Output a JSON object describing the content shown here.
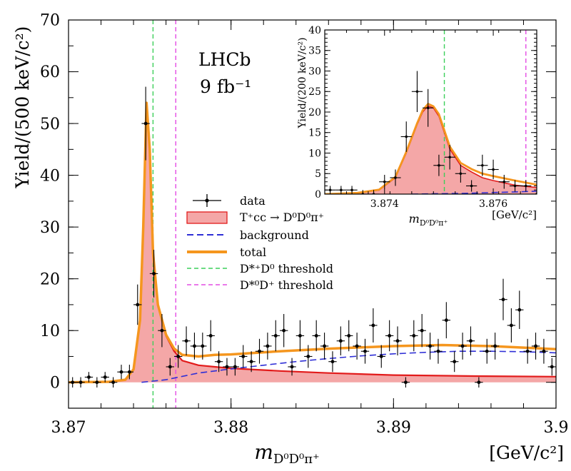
{
  "chart_data": [
    {
      "type": "scatter",
      "role": "main",
      "xlabel": "m",
      "xlabel_sub": "D⁰D⁰π⁺",
      "xunit": "[GeV/c²]",
      "ylabel": "Yield/(500 keV/c²)",
      "xlim": [
        3.87,
        3.9
      ],
      "ylim": [
        -5,
        70
      ],
      "xticks": [
        3.87,
        3.88,
        3.89,
        3.9
      ],
      "xtick_labels": [
        "3.87",
        "3.88",
        "3.89",
        "3.9"
      ],
      "yticks": [
        0,
        10,
        20,
        30,
        40,
        50,
        60,
        70
      ],
      "ytick_labels": [
        "0",
        "10",
        "20",
        "30",
        "40",
        "50",
        "60",
        "70"
      ],
      "annotations": [
        "LHCb",
        "9 fb⁻¹"
      ],
      "thresholds": [
        {
          "name": "D*+D0",
          "x": 3.8752,
          "color": "#3ccf5a"
        },
        {
          "name": "D*0D+",
          "x": 3.8766,
          "color": "#e44be4"
        }
      ],
      "legend": {
        "placement": "center",
        "entries": [
          {
            "key": "data",
            "label": "data"
          },
          {
            "key": "signal",
            "label": "T⁺cc → D⁰D⁰π⁺"
          },
          {
            "key": "background",
            "label": "background"
          },
          {
            "key": "total",
            "label": "total"
          },
          {
            "key": "thr1",
            "label": "D*⁺D⁰ threshold"
          },
          {
            "key": "thr2",
            "label": "D*⁰D⁺ threshold"
          }
        ]
      },
      "data": {
        "x": [
          3.87025,
          3.87075,
          3.87125,
          3.87175,
          3.87225,
          3.87275,
          3.87325,
          3.87375,
          3.87425,
          3.87475,
          3.87525,
          3.87575,
          3.87625,
          3.87675,
          3.87725,
          3.87775,
          3.87825,
          3.87875,
          3.87925,
          3.87975,
          3.88025,
          3.88075,
          3.88125,
          3.88175,
          3.88225,
          3.88275,
          3.88325,
          3.88375,
          3.88425,
          3.88475,
          3.88525,
          3.88575,
          3.88625,
          3.88675,
          3.88725,
          3.88775,
          3.88825,
          3.88875,
          3.88925,
          3.88975,
          3.89025,
          3.89075,
          3.89125,
          3.89175,
          3.89225,
          3.89275,
          3.89325,
          3.89375,
          3.89425,
          3.89475,
          3.89525,
          3.89575,
          3.89625,
          3.89675,
          3.89725,
          3.89775,
          3.89825,
          3.89875,
          3.89925,
          3.89975
        ],
        "y": [
          0,
          0,
          1,
          0,
          1,
          0,
          2,
          2,
          15,
          50,
          21,
          10,
          3,
          5,
          8,
          7,
          7,
          9,
          4,
          3,
          3,
          5,
          4,
          6,
          7,
          9,
          10,
          3,
          9,
          5,
          9,
          7,
          4,
          8,
          9,
          7,
          6,
          11,
          5,
          9,
          8,
          0,
          9,
          10,
          7,
          6,
          12,
          4,
          7,
          8,
          0,
          6,
          7,
          16,
          11,
          14,
          6,
          7,
          6,
          3
        ],
        "yerr": [
          1,
          1,
          1,
          1,
          1,
          1,
          1.4,
          1.4,
          3.9,
          7.1,
          4.6,
          3.2,
          1.7,
          2.2,
          2.8,
          2.6,
          2.6,
          3,
          2,
          1.7,
          1.7,
          2.2,
          2,
          2.4,
          2.6,
          3,
          3.2,
          1.7,
          3,
          2.2,
          3,
          2.6,
          2,
          2.8,
          3,
          2.6,
          2.4,
          3.3,
          2.2,
          3,
          2.8,
          1,
          3,
          3.2,
          2.6,
          2.4,
          3.5,
          2,
          2.6,
          2.8,
          1,
          2.4,
          2.6,
          4,
          3.3,
          3.7,
          2.4,
          2.6,
          2.4,
          1.7
        ]
      },
      "curves": {
        "background": {
          "x": [
            3.8745,
            3.876,
            3.878,
            3.88,
            3.882,
            3.884,
            3.886,
            3.888,
            3.89,
            3.892,
            3.894,
            3.896,
            3.898,
            3.9
          ],
          "y": [
            0,
            0.5,
            1.8,
            2.6,
            3.3,
            4.0,
            4.6,
            5.1,
            5.5,
            5.8,
            6.0,
            6.0,
            5.9,
            5.7
          ]
        },
        "signal": {
          "x": [
            3.87,
            3.8725,
            3.8735,
            3.874,
            3.8744,
            3.8746,
            3.8748,
            3.875,
            3.8752,
            3.8755,
            3.876,
            3.8765,
            3.877,
            3.878,
            3.879,
            3.88,
            3.883,
            3.886,
            3.89,
            3.895,
            3.9
          ],
          "y": [
            0,
            0.1,
            0.5,
            2.5,
            12,
            30,
            54,
            45,
            25,
            15,
            9,
            6,
            4.2,
            3.3,
            3.0,
            2.7,
            2.2,
            1.8,
            1.4,
            1.2,
            1.1
          ]
        },
        "total": {
          "x": [
            3.87,
            3.8725,
            3.8735,
            3.874,
            3.8744,
            3.8746,
            3.8748,
            3.875,
            3.8752,
            3.8755,
            3.876,
            3.8765,
            3.877,
            3.878,
            3.879,
            3.88,
            3.883,
            3.886,
            3.89,
            3.893,
            3.896,
            3.9
          ],
          "y": [
            0,
            0.1,
            0.5,
            2.5,
            12,
            30,
            54,
            45,
            25,
            15,
            9.2,
            6.5,
            5.3,
            5.0,
            5.3,
            5.4,
            6.0,
            6.5,
            7.0,
            7.2,
            7.0,
            6.4
          ]
        }
      }
    },
    {
      "type": "scatter",
      "role": "inset",
      "xlabel": "m",
      "xlabel_sub": "D⁰D⁰π⁺",
      "xunit": "[GeV/c²]",
      "ylabel": "Yield/(200 keV/c²)",
      "xlim": [
        3.8729,
        3.8768
      ],
      "ylim": [
        0,
        40
      ],
      "xticks": [
        3.874,
        3.876
      ],
      "xtick_labels": [
        "3.874",
        "3.876"
      ],
      "yticks": [
        0,
        5,
        10,
        15,
        20,
        25,
        30,
        35,
        40
      ],
      "ytick_labels": [
        "0",
        "5",
        "10",
        "15",
        "20",
        "25",
        "30",
        "35",
        "40"
      ],
      "thresholds": [
        {
          "name": "D*+D0",
          "x": 3.8751,
          "color": "#3ccf5a"
        },
        {
          "name": "D*0D+",
          "x": 3.8766,
          "color": "#e44be4"
        }
      ],
      "data": {
        "x": [
          3.873,
          3.8732,
          3.8734,
          3.8736,
          3.8738,
          3.874,
          3.8742,
          3.8744,
          3.8746,
          3.8748,
          3.875,
          3.8752,
          3.8754,
          3.8756,
          3.8758,
          3.876,
          3.8762,
          3.8764,
          3.8766,
          3.8768
        ],
        "y": [
          1,
          1,
          1,
          0,
          0,
          3,
          4,
          14,
          25,
          21,
          7,
          9,
          5,
          2,
          7,
          6,
          3,
          2,
          2,
          0
        ],
        "yerr": [
          1,
          1,
          1,
          1,
          1,
          1.7,
          2,
          3.7,
          5,
          4.6,
          2.6,
          3,
          2.2,
          1.4,
          2.6,
          2.4,
          1.7,
          1.4,
          1.4,
          1
        ]
      },
      "curves": {
        "signal": {
          "x": [
            3.8729,
            3.8735,
            3.8739,
            3.8742,
            3.8744,
            3.8746,
            3.8747,
            3.8748,
            3.8749,
            3.875,
            3.8752,
            3.8754,
            3.8756,
            3.8758,
            3.876,
            3.8764,
            3.8768
          ],
          "y": [
            0,
            0.3,
            1,
            4,
            10,
            17,
            20,
            21.5,
            21,
            19,
            11,
            7,
            5.4,
            4,
            3.3,
            2.2,
            1.6
          ]
        },
        "total": {
          "x": [
            3.8729,
            3.8735,
            3.8739,
            3.8742,
            3.8744,
            3.8746,
            3.8747,
            3.8748,
            3.8749,
            3.875,
            3.8752,
            3.8754,
            3.8756,
            3.8758,
            3.876,
            3.8764,
            3.8768
          ],
          "y": [
            0,
            0.3,
            1.1,
            4.2,
            10.3,
            17.3,
            20.4,
            22,
            21.4,
            19.5,
            11.6,
            7.6,
            6.1,
            5,
            4.4,
            3.3,
            2.3
          ]
        },
        "background": {
          "x": [
            3.8745,
            3.8755,
            3.8768
          ],
          "y": [
            0,
            0.2,
            0.7
          ]
        }
      }
    }
  ],
  "colors": {
    "signal_fill": "#f4a7a7",
    "signal_line": "#e21b1b",
    "total": "#f5961e",
    "background": "#2f2fd6",
    "data": "#000000"
  }
}
